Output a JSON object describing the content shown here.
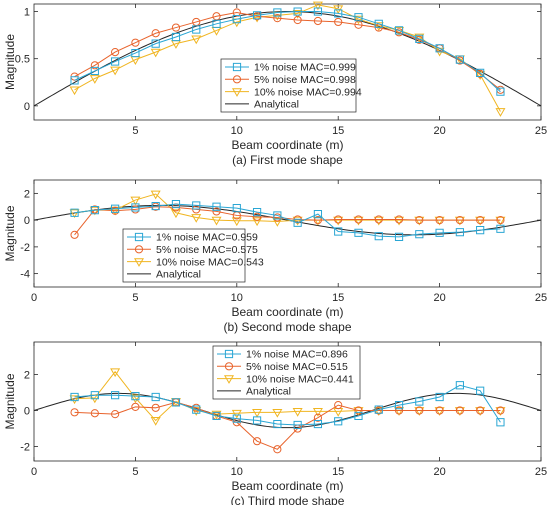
{
  "colors": {
    "s1": "#2aa6d4",
    "s2": "#e8632c",
    "s3": "#f0b521",
    "analytical": "#262626"
  },
  "chart_data": [
    {
      "type": "line",
      "caption": "(a) First mode shape",
      "xlabel": "Beam coordinate (m)",
      "ylabel": "Magnitude",
      "xlim": [
        0,
        25
      ],
      "ylim": [
        -0.15,
        1.08
      ],
      "xticks": [
        5,
        10,
        15,
        20,
        25
      ],
      "xtick_labels": [
        "5",
        "10",
        "15",
        "20",
        "25"
      ],
      "yticks": [
        0,
        0.5,
        1
      ],
      "ytick_labels": [
        "0",
        "0.5",
        "1"
      ],
      "legend_position": "center-right",
      "series": [
        {
          "name": "1% noise MAC=0.999",
          "marker": "square",
          "x": [
            2,
            3,
            4,
            5,
            6,
            7,
            8,
            9,
            10,
            11,
            12,
            13,
            14,
            15,
            16,
            17,
            18,
            19,
            20,
            21,
            22,
            23
          ],
          "y": [
            0.27,
            0.37,
            0.47,
            0.56,
            0.66,
            0.73,
            0.81,
            0.87,
            0.92,
            0.96,
            0.99,
            1.0,
            1.0,
            0.98,
            0.94,
            0.87,
            0.8,
            0.71,
            0.61,
            0.49,
            0.35,
            0.15
          ]
        },
        {
          "name": "5% noise MAC=0.998",
          "marker": "circle",
          "x": [
            2,
            3,
            4,
            5,
            6,
            7,
            8,
            9,
            10,
            11,
            12,
            13,
            14,
            15,
            16,
            17,
            18,
            19,
            20,
            21,
            22,
            23
          ],
          "y": [
            0.31,
            0.43,
            0.57,
            0.67,
            0.77,
            0.83,
            0.89,
            0.95,
            0.99,
            0.95,
            0.93,
            0.91,
            0.9,
            0.89,
            0.86,
            0.83,
            0.78,
            0.7,
            0.61,
            0.48,
            0.34,
            0.17
          ]
        },
        {
          "name": "10% noise MAC=0.994",
          "marker": "triangle-down",
          "x": [
            2,
            3,
            4,
            5,
            6,
            7,
            8,
            9,
            10,
            11,
            12,
            13,
            14,
            15,
            16,
            17,
            18,
            19,
            20,
            21,
            22,
            23
          ],
          "y": [
            0.17,
            0.29,
            0.38,
            0.49,
            0.57,
            0.66,
            0.71,
            0.8,
            0.89,
            0.94,
            0.96,
            0.98,
            1.07,
            1.03,
            0.92,
            0.85,
            0.8,
            0.73,
            0.58,
            0.5,
            0.33,
            -0.06
          ]
        },
        {
          "name": "Analytical",
          "type": "curve",
          "function": "sin(pi*x/25)"
        }
      ]
    },
    {
      "type": "line",
      "caption": "(b) Second mode shape",
      "xlabel": "Beam coordinate (m)",
      "ylabel": "Magnitude",
      "xlim": [
        0,
        25
      ],
      "ylim": [
        -5,
        3
      ],
      "xticks": [
        0,
        5,
        10,
        15,
        20,
        25
      ],
      "xtick_labels": [
        "0",
        "5",
        "10",
        "15",
        "20",
        "25"
      ],
      "yticks": [
        -4,
        -2,
        0,
        2
      ],
      "ytick_labels": [
        "-4",
        "-2",
        "0",
        "2"
      ],
      "legend_position": "bottom-left",
      "series": [
        {
          "name": "1% noise MAC=0.959",
          "marker": "square",
          "x": [
            2,
            3,
            4,
            5,
            6,
            7,
            8,
            9,
            10,
            11,
            12,
            13,
            14,
            15,
            16,
            17,
            18,
            19,
            20,
            21,
            22,
            23
          ],
          "y": [
            0.55,
            0.75,
            0.85,
            0.95,
            1.05,
            1.2,
            1.1,
            1.0,
            0.9,
            0.6,
            0.35,
            -0.2,
            0.45,
            -0.85,
            -0.95,
            -1.2,
            -1.25,
            -1.05,
            -0.95,
            -0.9,
            -0.75,
            -0.65
          ]
        },
        {
          "name": "5% noise MAC=0.575",
          "marker": "circle",
          "x": [
            2,
            3,
            4,
            5,
            6,
            7,
            8,
            9,
            10,
            11,
            12,
            13,
            14,
            15,
            16,
            17,
            18,
            19,
            20,
            21,
            22,
            23
          ],
          "y": [
            -1.1,
            0.8,
            0.7,
            0.8,
            1.0,
            0.95,
            0.8,
            0.65,
            0.35,
            0.25,
            0.2,
            0.05,
            0.0,
            0.05,
            0.05,
            0.05,
            0.05,
            0.0,
            0.0,
            0.0,
            0.0,
            0.0
          ]
        },
        {
          "name": "10% noise MAC=0.543",
          "marker": "triangle-down",
          "x": [
            2,
            3,
            4,
            5,
            6,
            7,
            8,
            9,
            10,
            11,
            12,
            13,
            14,
            15,
            16,
            17,
            18,
            19,
            20,
            21,
            22,
            23
          ],
          "y": [
            0.55,
            0.75,
            0.75,
            1.5,
            1.95,
            0.55,
            0.2,
            0.0,
            -0.05,
            -0.05,
            -0.1,
            0.0,
            0.0,
            0.0,
            0.0,
            0.0,
            0.0,
            0.0,
            0.0,
            0.0,
            0.0,
            0.0
          ]
        },
        {
          "name": "Analytical",
          "type": "curve",
          "function": "1.1*sin(2*pi*x/25)"
        }
      ]
    },
    {
      "type": "line",
      "caption": "(c) Third mode shape",
      "xlabel": "Beam coordinate (m)",
      "ylabel": "Magnitude",
      "xlim": [
        0,
        25
      ],
      "ylim": [
        -2.8,
        3.8
      ],
      "xticks": [
        0,
        5,
        10,
        15,
        20,
        25
      ],
      "xtick_labels": [
        "0",
        "5",
        "10",
        "15",
        "20",
        "25"
      ],
      "yticks": [
        -2,
        0,
        2
      ],
      "ytick_labels": [
        "-2",
        "0",
        "2"
      ],
      "legend_position": "top-center",
      "series": [
        {
          "name": "1% noise MAC=0.896",
          "marker": "square",
          "x": [
            2,
            3,
            4,
            5,
            6,
            7,
            8,
            9,
            10,
            11,
            12,
            13,
            14,
            15,
            16,
            17,
            18,
            19,
            20,
            21,
            22,
            23
          ],
          "y": [
            0.75,
            0.85,
            0.85,
            0.8,
            0.75,
            0.45,
            0.05,
            -0.3,
            -0.45,
            -0.55,
            -0.75,
            -0.8,
            -0.75,
            -0.6,
            -0.3,
            0.05,
            0.3,
            0.5,
            0.75,
            1.4,
            1.1,
            -0.65
          ]
        },
        {
          "name": "5% noise MAC=0.515",
          "marker": "circle",
          "x": [
            2,
            3,
            4,
            5,
            6,
            7,
            8,
            9,
            10,
            11,
            12,
            13,
            14,
            15,
            16,
            17,
            18,
            19,
            20,
            21,
            22,
            23
          ],
          "y": [
            -0.1,
            -0.15,
            -0.2,
            0.2,
            0.15,
            0.45,
            0.15,
            -0.3,
            -0.65,
            -1.7,
            -2.15,
            -1.0,
            -0.4,
            0.3,
            0.0,
            0.0,
            0.0,
            0.0,
            0.0,
            0.0,
            0.0,
            0.0
          ]
        },
        {
          "name": "10% noise MAC=0.441",
          "marker": "triangle-down",
          "x": [
            2,
            3,
            4,
            5,
            6,
            7,
            8,
            9,
            10,
            11,
            12,
            13,
            14,
            15,
            16,
            17,
            18,
            19,
            20,
            21,
            22,
            23
          ],
          "y": [
            0.65,
            0.7,
            2.15,
            0.7,
            -0.55,
            0.5,
            0.0,
            -0.2,
            -0.15,
            -0.1,
            -0.1,
            -0.05,
            -0.05,
            -0.05,
            0.0,
            0.0,
            0.0,
            0.0,
            0.0,
            0.0,
            0.0,
            0.0
          ]
        },
        {
          "name": "Analytical",
          "type": "curve",
          "function": "0.95*sin(3*pi*x/25)"
        }
      ]
    }
  ]
}
